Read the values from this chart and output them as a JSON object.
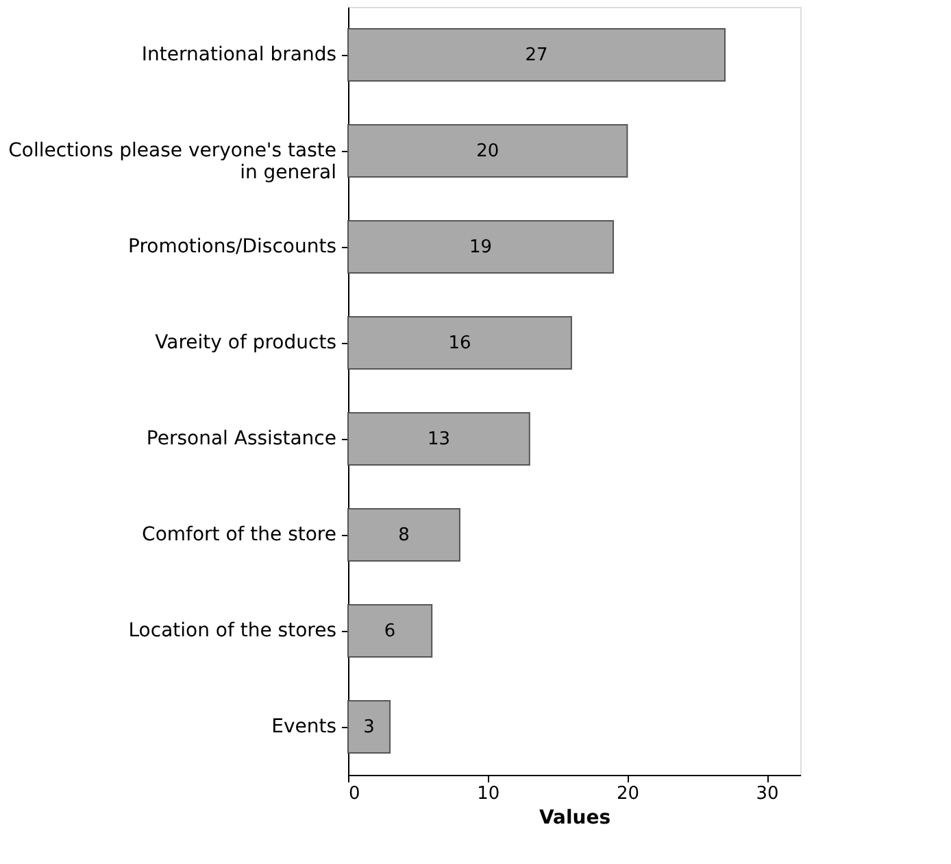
{
  "chart_data": {
    "type": "bar",
    "orientation": "horizontal",
    "xlabel": "Values",
    "categories": [
      "International brands",
      "Collections please veryone's taste\nin general",
      "Promotions/Discounts",
      "Vareity of products",
      "Personal Assistance",
      "Comfort of the store",
      "Location of the stores",
      "Events"
    ],
    "values": [
      27,
      20,
      19,
      16,
      13,
      8,
      6,
      3
    ],
    "color": "#a9a9a9",
    "xlim": [
      0,
      32.4
    ],
    "xticks": [
      0,
      10,
      20,
      30
    ],
    "grid": false,
    "data_labels": true
  }
}
